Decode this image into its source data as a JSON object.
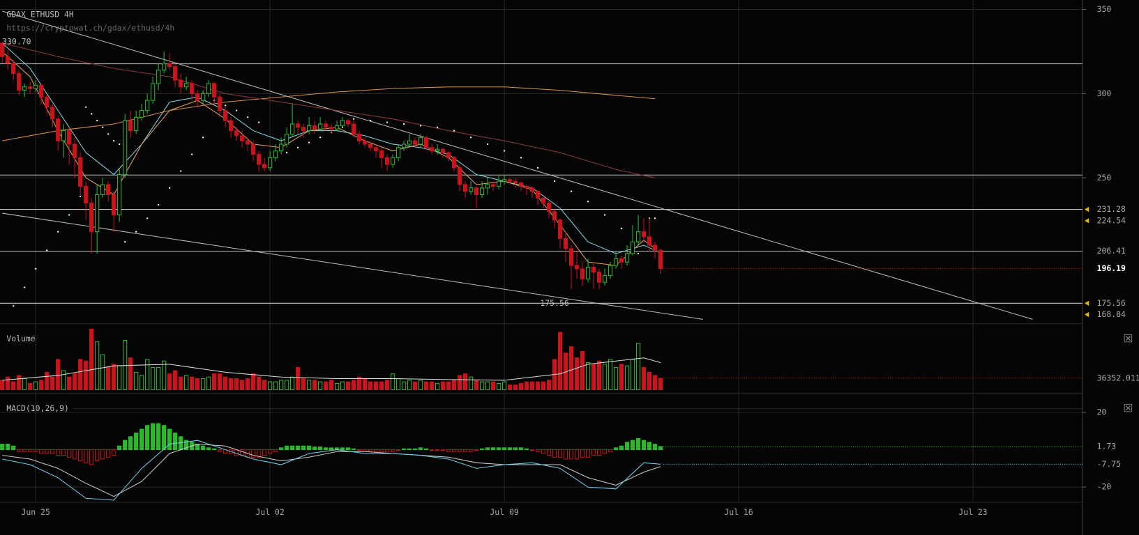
{
  "chart_data": {
    "type": "candlestick",
    "title": "GDAX ETHUSD 4H",
    "subtitle": "https://cryptowat.ch/gdax/ethusd/4h",
    "xlim": [
      -0.4,
      193.6
    ],
    "xticks": [
      {
        "value": 6,
        "label": "Jun 25"
      },
      {
        "value": 48,
        "label": "Jul 02"
      },
      {
        "value": 90,
        "label": "Jul 09"
      },
      {
        "value": 132,
        "label": "Jul 16"
      },
      {
        "value": 174,
        "label": "Jul 23"
      }
    ],
    "ylim": [
      165.1,
      355.6
    ],
    "yticks": [
      250,
      300,
      350
    ],
    "grid": true,
    "up_color": "#2fb82f",
    "down_color": "#c8151b",
    "candles": [
      [
        330,
        330.7,
        318,
        322
      ],
      [
        322,
        326,
        314,
        318
      ],
      [
        318,
        320,
        308,
        312
      ],
      [
        312,
        314,
        299,
        302
      ],
      [
        302,
        306,
        298,
        304
      ],
      [
        304,
        307,
        300,
        303
      ],
      [
        303,
        308,
        301,
        305
      ],
      [
        305,
        306,
        294,
        298
      ],
      [
        298,
        300,
        288,
        292
      ],
      [
        292,
        294,
        280,
        285
      ],
      [
        285,
        287,
        266,
        272
      ],
      [
        272,
        282,
        262,
        278
      ],
      [
        278,
        280,
        258,
        270
      ],
      [
        270,
        274,
        250,
        262
      ],
      [
        262,
        265,
        240,
        245
      ],
      [
        245,
        248,
        225,
        235
      ],
      [
        235,
        238,
        205,
        218
      ],
      [
        218,
        246,
        205,
        240
      ],
      [
        240,
        250,
        238,
        246
      ],
      [
        246,
        248,
        236,
        240
      ],
      [
        240,
        242,
        218,
        228
      ],
      [
        228,
        256,
        224,
        252
      ],
      [
        252,
        288,
        250,
        284
      ],
      [
        284,
        290,
        274,
        278
      ],
      [
        278,
        290,
        276,
        286
      ],
      [
        286,
        294,
        284,
        290
      ],
      [
        290,
        300,
        288,
        296
      ],
      [
        296,
        310,
        294,
        306
      ],
      [
        306,
        318,
        302,
        314
      ],
      [
        314,
        325,
        312,
        318
      ],
      [
        318,
        324,
        314,
        316
      ],
      [
        316,
        318,
        304,
        308
      ],
      [
        308,
        312,
        300,
        304
      ],
      [
        304,
        310,
        302,
        306
      ],
      [
        306,
        308,
        296,
        300
      ],
      [
        300,
        302,
        292,
        296
      ],
      [
        296,
        302,
        294,
        300
      ],
      [
        300,
        308,
        298,
        306
      ],
      [
        306,
        307,
        294,
        298
      ],
      [
        298,
        300,
        286,
        290
      ],
      [
        290,
        292,
        280,
        284
      ],
      [
        284,
        286,
        274,
        278
      ],
      [
        278,
        280,
        272,
        275
      ],
      [
        275,
        278,
        268,
        272
      ],
      [
        272,
        274,
        266,
        270
      ],
      [
        270,
        272,
        260,
        264
      ],
      [
        264,
        266,
        254,
        258
      ],
      [
        258,
        262,
        254,
        256
      ],
      [
        256,
        266,
        254,
        262
      ],
      [
        262,
        270,
        260,
        266
      ],
      [
        266,
        274,
        264,
        270
      ],
      [
        270,
        280,
        268,
        276
      ],
      [
        276,
        294,
        274,
        282
      ],
      [
        282,
        284,
        276,
        280
      ],
      [
        280,
        282,
        274,
        278
      ],
      [
        278,
        286,
        276,
        281
      ],
      [
        281,
        284,
        276,
        279
      ],
      [
        279,
        286,
        278,
        282
      ],
      [
        282,
        284,
        278,
        280
      ],
      [
        280,
        282,
        276,
        279
      ],
      [
        279,
        284,
        278,
        281
      ],
      [
        281,
        286,
        280,
        284
      ],
      [
        284,
        285,
        280,
        282
      ],
      [
        282,
        284,
        274,
        276
      ],
      [
        276,
        278,
        270,
        272
      ],
      [
        272,
        274,
        268,
        270
      ],
      [
        270,
        272,
        266,
        268
      ],
      [
        268,
        270,
        262,
        266
      ],
      [
        266,
        268,
        256,
        262
      ],
      [
        262,
        264,
        254,
        258
      ],
      [
        258,
        264,
        256,
        262
      ],
      [
        262,
        270,
        260,
        268
      ],
      [
        268,
        272,
        266,
        270
      ],
      [
        270,
        276,
        268,
        272
      ],
      [
        272,
        274,
        268,
        270
      ],
      [
        270,
        276,
        268,
        274
      ],
      [
        274,
        275,
        266,
        268
      ],
      [
        268,
        270,
        264,
        266
      ],
      [
        266,
        270,
        264,
        267
      ],
      [
        267,
        268,
        262,
        265
      ],
      [
        265,
        266,
        260,
        262
      ],
      [
        262,
        263,
        254,
        256
      ],
      [
        256,
        258,
        242,
        246
      ],
      [
        246,
        248,
        238,
        242
      ],
      [
        242,
        248,
        240,
        244
      ],
      [
        244,
        245,
        232,
        240
      ],
      [
        240,
        248,
        238,
        244
      ],
      [
        244,
        250,
        240,
        246
      ],
      [
        246,
        248,
        242,
        245
      ],
      [
        245,
        252,
        243,
        248
      ],
      [
        248,
        252,
        246,
        249
      ],
      [
        249,
        250,
        246,
        248
      ],
      [
        248,
        250,
        244,
        247
      ],
      [
        247,
        248,
        242,
        245
      ],
      [
        245,
        246,
        240,
        244
      ],
      [
        244,
        245,
        238,
        242
      ],
      [
        242,
        243,
        234,
        238
      ],
      [
        238,
        240,
        232,
        235
      ],
      [
        235,
        236,
        226,
        230
      ],
      [
        230,
        232,
        220,
        225
      ],
      [
        225,
        226,
        208,
        214
      ],
      [
        214,
        218,
        200,
        208
      ],
      [
        208,
        210,
        184,
        198
      ],
      [
        198,
        206,
        190,
        196
      ],
      [
        196,
        200,
        186,
        190
      ],
      [
        190,
        202,
        188,
        197
      ],
      [
        197,
        200,
        184,
        194
      ],
      [
        194,
        196,
        184,
        188
      ],
      [
        188,
        196,
        186,
        192
      ],
      [
        192,
        200,
        190,
        198
      ],
      [
        198,
        206,
        196,
        202
      ],
      [
        202,
        204,
        196,
        200
      ],
      [
        200,
        210,
        198,
        205
      ],
      [
        205,
        222,
        204,
        212
      ],
      [
        212,
        228,
        210,
        218
      ],
      [
        218,
        226,
        212,
        215
      ],
      [
        215,
        226,
        206,
        210
      ],
      [
        210,
        212,
        202,
        207
      ],
      [
        207,
        208,
        193,
        196.19
      ]
    ],
    "lines": [
      {
        "color": "#7fd6e0",
        "x": [
          0,
          5,
          10,
          15,
          20,
          25,
          30,
          35,
          40,
          45,
          50,
          55,
          60,
          65,
          70,
          75,
          80,
          85,
          90,
          95,
          100,
          105,
          110,
          115,
          117
        ],
        "values": [
          330,
          315,
          290,
          265,
          252,
          270,
          295,
          298,
          290,
          278,
          272,
          278,
          278,
          275,
          270,
          268,
          264,
          252,
          248,
          244,
          232,
          212,
          205,
          210,
          207
        ]
      },
      {
        "color": "#e8a060",
        "x": [
          0,
          5,
          10,
          15,
          20,
          25,
          30,
          35,
          40,
          45,
          50,
          55,
          60,
          65,
          70,
          75,
          80,
          85,
          90,
          95,
          100,
          105,
          110,
          115,
          117
        ],
        "values": [
          325,
          310,
          278,
          250,
          240,
          270,
          290,
          296,
          285,
          270,
          268,
          278,
          280,
          272,
          266,
          270,
          262,
          246,
          248,
          243,
          222,
          200,
          198,
          213,
          208
        ]
      },
      {
        "color": "#d8904a",
        "x": [
          0,
          10,
          20,
          30,
          40,
          50,
          60,
          70,
          80,
          90,
          100,
          110,
          117
        ],
        "values": [
          272,
          278,
          282,
          290,
          295,
          298,
          301,
          303,
          304,
          304,
          302,
          299,
          297
        ]
      },
      {
        "color": "#8a3a3a",
        "x": [
          0,
          10,
          20,
          30,
          40,
          50,
          60,
          70,
          80,
          90,
          100,
          110,
          117
        ],
        "values": [
          330,
          322,
          315,
          310,
          300,
          295,
          290,
          285,
          278,
          272,
          265,
          255,
          250
        ]
      }
    ],
    "sar": {
      "color": "#ffffff",
      "x": [
        2,
        4,
        6,
        8,
        10,
        12,
        14,
        15,
        16,
        17,
        18,
        19,
        20,
        21,
        22,
        24,
        26,
        28,
        30,
        32,
        34,
        36,
        38,
        40,
        42,
        44,
        46,
        49,
        51,
        53,
        55,
        57,
        59,
        61,
        63,
        66,
        69,
        72,
        75,
        78,
        81,
        84,
        87,
        90,
        93,
        96,
        99,
        102,
        105,
        108,
        111,
        112,
        114,
        116,
        117
      ],
      "values": [
        174,
        185,
        196,
        207,
        218,
        228,
        239,
        292,
        288,
        284,
        280,
        276,
        272,
        270,
        212,
        218,
        226,
        234,
        244,
        254,
        264,
        274,
        296,
        293,
        290,
        286,
        283,
        262,
        265,
        268,
        271,
        274,
        277,
        280,
        285,
        284,
        283,
        282,
        281,
        280,
        278,
        274,
        270,
        266,
        262,
        256,
        248,
        242,
        236,
        228,
        220,
        204,
        205,
        226,
        226
      ]
    },
    "trendlines": [
      {
        "color": "#bbbbbb",
        "x": [
          0,
          184.7
        ],
        "values": [
          349,
          166
        ]
      },
      {
        "color": "#bbbbbb",
        "x": [
          0,
          125.6
        ],
        "values": [
          229,
          166
        ]
      }
    ],
    "levels": [
      317.7,
      251.7,
      231.28,
      206.41,
      175.56
    ],
    "price_labels": [
      {
        "value": 231.28,
        "arrow": true
      },
      {
        "value": 224.54,
        "arrow": true
      },
      {
        "value": 206.41,
        "arrow": false
      },
      {
        "value": 175.56,
        "arrow": true
      },
      {
        "value": 168.84,
        "arrow": true
      }
    ],
    "last_price": 196.19,
    "annotations": [
      {
        "x": 0,
        "value": 330.7,
        "label": "330.70"
      },
      {
        "x": 99,
        "value": 175.56
      }
    ],
    "volume": {
      "title": "Volume",
      "ylim": [
        0,
        193000
      ],
      "last_label": 36352.011,
      "values": [
        30000,
        40000,
        25000,
        45000,
        35000,
        20000,
        25000,
        30000,
        55000,
        40000,
        95000,
        60000,
        40000,
        50000,
        95000,
        90000,
        190000,
        150000,
        110000,
        70000,
        80000,
        75000,
        155000,
        100000,
        55000,
        45000,
        95000,
        70000,
        70000,
        90000,
        50000,
        60000,
        40000,
        45000,
        40000,
        35000,
        35000,
        40000,
        50000,
        50000,
        40000,
        35000,
        35000,
        30000,
        35000,
        50000,
        40000,
        30000,
        25000,
        25000,
        30000,
        30000,
        40000,
        70000,
        35000,
        30000,
        30000,
        25000,
        25000,
        30000,
        20000,
        25000,
        25000,
        30000,
        40000,
        35000,
        25000,
        25000,
        25000,
        30000,
        50000,
        35000,
        25000,
        30000,
        25000,
        30000,
        25000,
        25000,
        20000,
        25000,
        25000,
        30000,
        45000,
        50000,
        40000,
        30000,
        25000,
        25000,
        25000,
        20000,
        25000,
        15000,
        15000,
        20000,
        25000,
        25000,
        25000,
        25000,
        30000,
        95000,
        180000,
        115000,
        135000,
        100000,
        120000,
        85000,
        80000,
        90000,
        80000,
        95000,
        70000,
        80000,
        75000,
        95000,
        145000,
        70000,
        55000,
        45000,
        36352.011
      ],
      "ma": {
        "color": "#dddddd",
        "x": [
          0,
          10,
          20,
          30,
          40,
          50,
          60,
          70,
          80,
          90,
          100,
          105,
          110,
          115,
          118
        ],
        "values": [
          30000,
          45000,
          75000,
          80000,
          55000,
          40000,
          35000,
          35000,
          32000,
          30000,
          50000,
          80000,
          90000,
          100000,
          85000
        ]
      }
    },
    "macd": {
      "title": "MACD(10,26,9)",
      "ylim": [
        -27.4,
        27.8
      ],
      "yticks": [
        20,
        -20
      ],
      "labels": [
        1.73,
        -7.75
      ],
      "histogram": [
        3,
        3,
        2,
        -1,
        -1,
        -1,
        -1,
        -2,
        -2,
        -2,
        -3,
        -3,
        -4,
        -5,
        -6,
        -7,
        -8,
        -6,
        -5,
        -4,
        -3,
        2,
        5,
        7,
        9,
        11,
        13,
        14,
        14,
        13,
        11,
        9,
        7,
        5,
        4,
        3,
        2,
        1,
        0.5,
        -1,
        -2,
        -2,
        -3,
        -3,
        -4,
        -4,
        -4,
        -3,
        -2,
        -1,
        1,
        2,
        2,
        2,
        2,
        2,
        1.5,
        1.5,
        1,
        1,
        1,
        1,
        1,
        0.5,
        -0.5,
        -1,
        -1,
        -1,
        -1,
        -1,
        -1,
        -0.5,
        0.5,
        0.5,
        0.5,
        1,
        0.5,
        -0.5,
        -0.5,
        -0.5,
        -1,
        -1,
        -1,
        -1,
        -1,
        -0.5,
        0.5,
        1,
        1,
        1,
        1,
        1,
        1,
        1,
        0.5,
        -0.5,
        -1,
        -2,
        -3,
        -4,
        -4,
        -5,
        -5,
        -5,
        -4,
        -4,
        -3,
        -3,
        -2,
        -1,
        1,
        2,
        4,
        5,
        6,
        5,
        4,
        3,
        1.73
      ],
      "macd_line": {
        "color": "#6fd0e8",
        "x": [
          0,
          5,
          10,
          15,
          20,
          25,
          30,
          35,
          40,
          45,
          50,
          55,
          60,
          65,
          70,
          75,
          80,
          85,
          90,
          95,
          100,
          105,
          110,
          115,
          118
        ],
        "values": [
          -5,
          -8,
          -15,
          -26,
          -27,
          -10,
          3,
          5,
          0,
          -5,
          -8,
          -2,
          0,
          -2,
          -2,
          -3,
          -5,
          -10,
          -8,
          -7,
          -10,
          -20,
          -21,
          -7,
          -7.75
        ]
      },
      "signal_line": {
        "color": "#cccccc",
        "x": [
          0,
          5,
          10,
          15,
          20,
          25,
          30,
          35,
          40,
          45,
          50,
          55,
          60,
          65,
          70,
          75,
          80,
          85,
          90,
          95,
          100,
          105,
          110,
          115,
          118
        ],
        "values": [
          -3,
          -5,
          -10,
          -18,
          -25,
          -17,
          -2,
          3,
          2,
          -3,
          -6,
          -4,
          -1,
          -1,
          -2,
          -3,
          -4,
          -7,
          -8,
          -8,
          -8,
          -15,
          -19,
          -12,
          -9
        ]
      }
    }
  }
}
